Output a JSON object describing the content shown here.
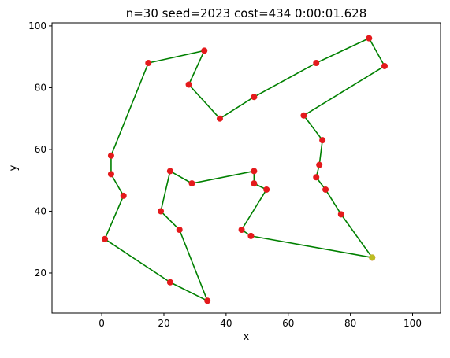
{
  "chart_data": {
    "type": "line",
    "title": "n=30 seed=2023 cost=434 0:00:01.628",
    "xlabel": "x",
    "ylabel": "y",
    "xlim": [
      -16,
      109
    ],
    "ylim": [
      7,
      101
    ],
    "xticks": [
      0,
      20,
      40,
      60,
      80,
      100
    ],
    "yticks": [
      20,
      40,
      60,
      80,
      100
    ],
    "grid": false,
    "legend": "none",
    "colors": {
      "path": "#008000",
      "point": "#e41a1c",
      "start": "#bcbd22"
    },
    "series": [
      {
        "name": "tour",
        "points": [
          [
            87,
            25
          ],
          [
            48,
            32
          ],
          [
            45,
            34
          ],
          [
            53,
            47
          ],
          [
            49,
            49
          ],
          [
            49,
            53
          ],
          [
            29,
            49
          ],
          [
            22,
            53
          ],
          [
            19,
            40
          ],
          [
            25,
            34
          ],
          [
            34,
            11
          ],
          [
            22,
            17
          ],
          [
            1,
            31
          ],
          [
            7,
            45
          ],
          [
            3,
            52
          ],
          [
            3,
            58
          ],
          [
            15,
            88
          ],
          [
            33,
            92
          ],
          [
            28,
            81
          ],
          [
            38,
            70
          ],
          [
            49,
            77
          ],
          [
            69,
            88
          ],
          [
            86,
            96
          ],
          [
            91,
            87
          ],
          [
            65,
            71
          ],
          [
            71,
            63
          ],
          [
            70,
            55
          ],
          [
            69,
            51
          ],
          [
            72,
            47
          ],
          [
            77,
            39
          ],
          [
            87,
            25
          ]
        ]
      }
    ],
    "start_point": [
      87,
      25
    ]
  }
}
